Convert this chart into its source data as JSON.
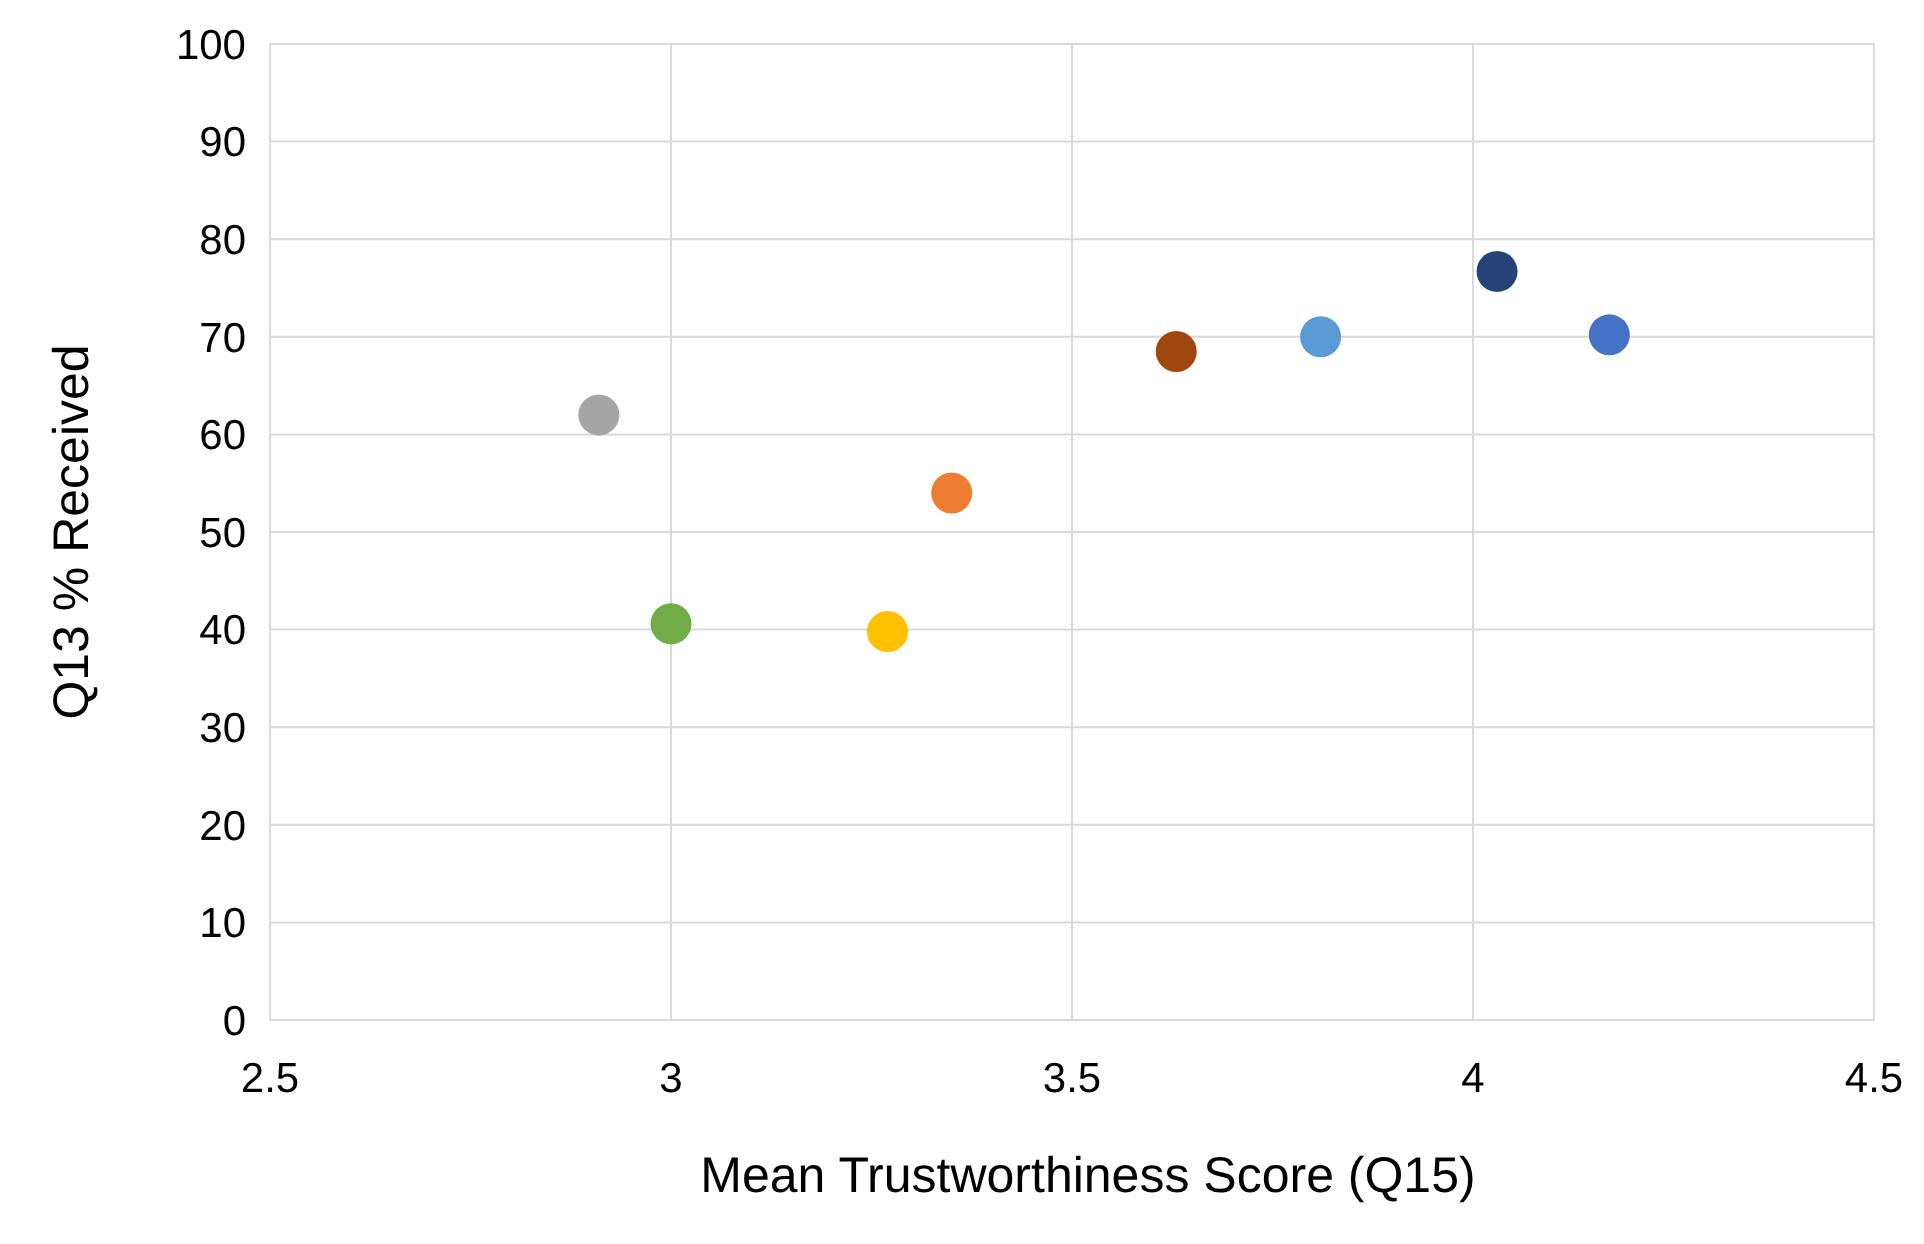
{
  "chart_data": {
    "type": "scatter",
    "xlabel": "Mean Trustworthiness Score (Q15)",
    "ylabel": "Q13 % Received",
    "x": [
      2.91,
      3.0,
      3.27,
      3.35,
      3.63,
      3.81,
      4.03,
      4.17
    ],
    "series": [
      {
        "values": [
          62,
          40.6,
          39.8,
          54,
          68.5,
          70,
          76.7,
          70.2
        ],
        "colors": [
          "#a5a5a5",
          "#70ad47",
          "#ffc000",
          "#ed7d31",
          "#9e480e",
          "#5b9bd5",
          "#264478",
          "#4472c4"
        ]
      }
    ],
    "xlim": [
      2.5,
      4.5
    ],
    "xticks": [
      2.5,
      3,
      3.5,
      4,
      4.5
    ],
    "ylim": [
      0,
      100
    ],
    "yticks": [
      0,
      10,
      20,
      30,
      40,
      50,
      60,
      70,
      80,
      90,
      100
    ],
    "grid": true,
    "marker": "circle"
  }
}
